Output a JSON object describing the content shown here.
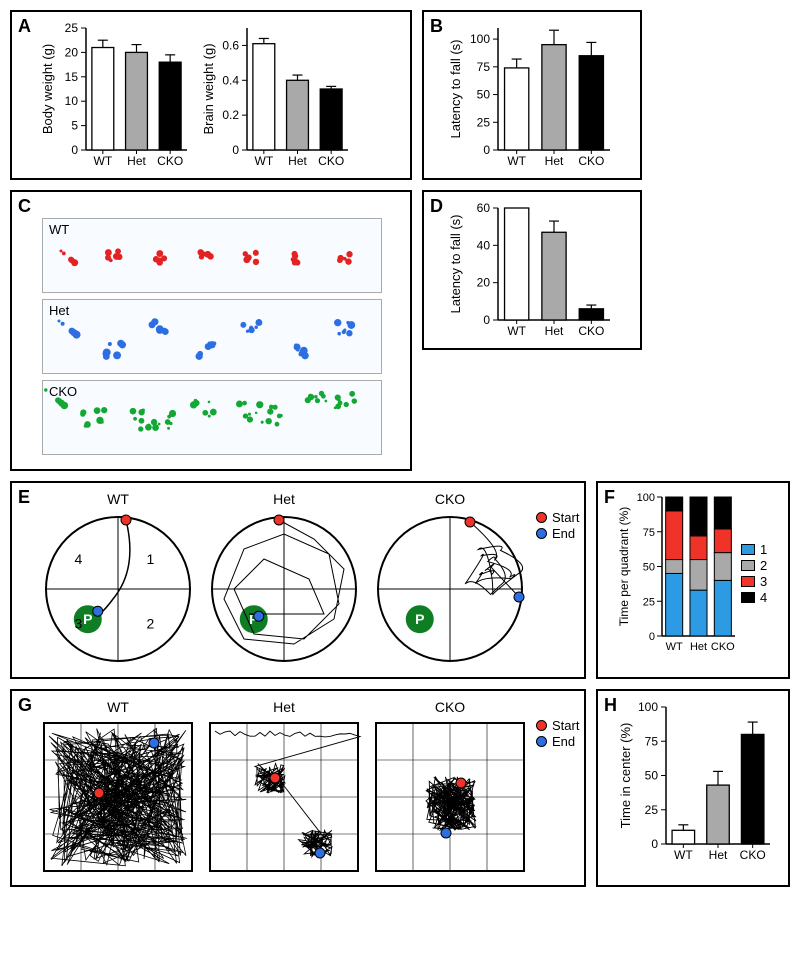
{
  "colors": {
    "wt_fill": "#ffffff",
    "het_fill": "#a9a9a9",
    "cko_fill": "#000000",
    "bar_stroke": "#000000",
    "q1": "#2d9be3",
    "q2": "#a9a9a9",
    "q3": "#f03329",
    "q4": "#000000",
    "start_dot": "#f03329",
    "end_dot": "#2d6fe3",
    "platform": "#0f7d24",
    "fp_wt": "#e32222",
    "fp_het": "#2d6fe3",
    "fp_cko": "#12a833"
  },
  "categories": [
    "WT",
    "Het",
    "CKO"
  ],
  "panel_A": {
    "label": "A",
    "left": {
      "ylabel": "Body weight (g)",
      "ylim": [
        0,
        25
      ],
      "ytick_step": 5,
      "values": [
        21,
        20,
        18
      ],
      "errors": [
        1.5,
        1.6,
        1.5
      ]
    },
    "right": {
      "ylabel": "Brain weight (g)",
      "ylim": [
        0,
        0.7
      ],
      "ytick_step": 0.2,
      "ticks": [
        0,
        0.2,
        0.4,
        0.6
      ],
      "values": [
        0.61,
        0.4,
        0.35
      ],
      "errors": [
        0.03,
        0.03,
        0.015
      ]
    }
  },
  "panel_B": {
    "label": "B",
    "ylabel": "Latency to fall (s)",
    "ylim": [
      0,
      110
    ],
    "ticks": [
      0,
      25,
      50,
      75,
      100
    ],
    "values": [
      74,
      95,
      85
    ],
    "errors": [
      8,
      13,
      12
    ]
  },
  "panel_C": {
    "label": "C",
    "groups": [
      "WT",
      "Het",
      "CKO"
    ]
  },
  "panel_D": {
    "label": "D",
    "ylabel": "Latency to fall (s)",
    "ylim": [
      0,
      60
    ],
    "ticks": [
      0,
      20,
      40,
      60
    ],
    "values": [
      60,
      47,
      6
    ],
    "errors": [
      0,
      6,
      2
    ]
  },
  "panel_E": {
    "label": "E",
    "titles": [
      "WT",
      "Het",
      "CKO"
    ],
    "quadrant_labels": [
      "1",
      "2",
      "3",
      "4"
    ],
    "platform_label": "P",
    "legend": [
      {
        "key": "Start",
        "color_ref": "start_dot"
      },
      {
        "key": "End",
        "color_ref": "end_dot"
      }
    ]
  },
  "panel_F": {
    "label": "F",
    "ylabel": "Time per quadrant (%)",
    "ylim": [
      0,
      100
    ],
    "ticks": [
      0,
      25,
      50,
      75,
      100
    ],
    "stacks": {
      "WT": {
        "1": 45,
        "2": 10,
        "3": 35,
        "4": 10
      },
      "Het": {
        "1": 33,
        "2": 22,
        "3": 17,
        "4": 28
      },
      "CKO": {
        "1": 40,
        "2": 20,
        "3": 17,
        "4": 23
      }
    },
    "legend": [
      "1",
      "2",
      "3",
      "4"
    ]
  },
  "panel_G": {
    "label": "G",
    "titles": [
      "WT",
      "Het",
      "CKO"
    ],
    "legend": [
      {
        "key": "Start",
        "color_ref": "start_dot"
      },
      {
        "key": "End",
        "color_ref": "end_dot"
      }
    ]
  },
  "panel_H": {
    "label": "H",
    "ylabel": "Time in center (%)",
    "ylim": [
      0,
      100
    ],
    "ticks": [
      0,
      25,
      50,
      75,
      100
    ],
    "values": [
      10,
      43,
      80
    ],
    "errors": [
      4,
      10,
      9
    ]
  },
  "layout": {
    "bar_width": 0.65,
    "tick_fontsize": 12,
    "label_fontsize": 14,
    "title_fontsize": 14
  }
}
